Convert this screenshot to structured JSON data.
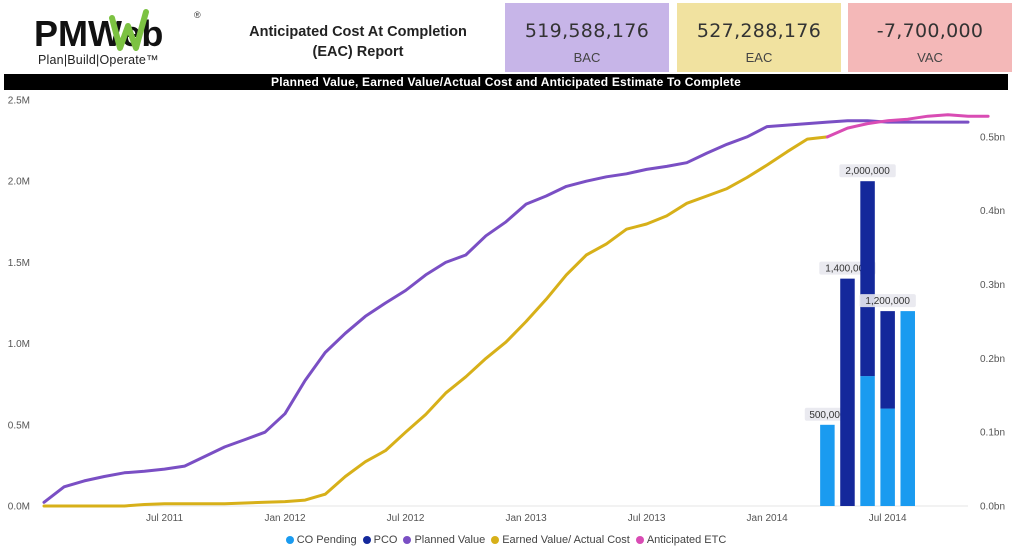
{
  "header": {
    "logo_text": "PMWeb",
    "logo_mark": "®",
    "tagline": "Plan|Build|Operate™",
    "report_title": "Anticipated Cost At Completion (EAC) Report"
  },
  "kpis": [
    {
      "value": "519,588,176",
      "label": "BAC",
      "color": "#c7b5e8"
    },
    {
      "value": "527,288,176",
      "label": "EAC",
      "color": "#f1e2a0"
    },
    {
      "value": "-7,700,000",
      "label": "VAC",
      "color": "#f4b8b8"
    }
  ],
  "banner": "Planned Value, Earned Value/Actual Cost and Anticipated Estimate To Complete",
  "chart_data": {
    "type": "line",
    "title": "Planned Value, Earned Value/Actual Cost and Anticipated Estimate To Complete",
    "x_start": "2011-01",
    "x_end": "2014-11",
    "x_ticks": [
      {
        "label": "Jul 2011",
        "index": 6
      },
      {
        "label": "Jan 2012",
        "index": 12
      },
      {
        "label": "Jul 2012",
        "index": 18
      },
      {
        "label": "Jan 2013",
        "index": 24
      },
      {
        "label": "Jul 2013",
        "index": 30
      },
      {
        "label": "Jan 2014",
        "index": 36
      },
      {
        "label": "Jul 2014",
        "index": 42
      }
    ],
    "y_left": {
      "min": 0,
      "max": 2500000,
      "ticks": [
        {
          "value": 0,
          "label": "0.0M"
        },
        {
          "value": 500000,
          "label": "0.5M"
        },
        {
          "value": 1000000,
          "label": "1.0M"
        },
        {
          "value": 1500000,
          "label": "1.5M"
        },
        {
          "value": 2000000,
          "label": "2.0M"
        },
        {
          "value": 2500000,
          "label": "2.5M"
        }
      ]
    },
    "y_right": {
      "min": 0,
      "max": 0.55,
      "ticks": [
        {
          "value": 0,
          "label": "0.0bn"
        },
        {
          "value": 0.1,
          "label": "0.1bn"
        },
        {
          "value": 0.2,
          "label": "0.2bn"
        },
        {
          "value": 0.3,
          "label": "0.3bn"
        },
        {
          "value": 0.4,
          "label": "0.4bn"
        },
        {
          "value": 0.5,
          "label": "0.5bn"
        }
      ]
    },
    "bar_series": [
      {
        "name": "CO Pending",
        "color": "#1a9bf0"
      },
      {
        "name": "PCO",
        "color": "#14289b"
      }
    ],
    "bars": [
      {
        "index": 39,
        "co_pending": 500000,
        "pco": 0,
        "label": "500,000"
      },
      {
        "index": 40,
        "co_pending": 0,
        "pco": 1400000,
        "label": "1,400,000"
      },
      {
        "index": 41,
        "co_pending": 800000,
        "pco": 1200000,
        "label": "2,000,000"
      },
      {
        "index": 42,
        "co_pending": 600000,
        "pco": 600000,
        "label": "1,200,000"
      },
      {
        "index": 43,
        "co_pending": 1200000,
        "pco": 0,
        "label": ""
      }
    ],
    "line_series": [
      {
        "name": "Planned Value",
        "color": "#7a4fc4",
        "start": 0,
        "values": [
          0.005,
          0.026,
          0.034,
          0.04,
          0.045,
          0.047,
          0.05,
          0.054,
          0.067,
          0.08,
          0.09,
          0.1,
          0.125,
          0.17,
          0.208,
          0.234,
          0.257,
          0.275,
          0.292,
          0.313,
          0.33,
          0.34,
          0.366,
          0.385,
          0.409,
          0.42,
          0.433,
          0.44,
          0.446,
          0.45,
          0.456,
          0.46,
          0.465,
          0.478,
          0.49,
          0.5,
          0.514,
          0.516,
          0.518,
          0.52,
          0.522,
          0.522,
          0.52,
          0.52,
          0.52,
          0.52,
          0.52
        ]
      },
      {
        "name": "Earned Value/ Actual Cost",
        "color": "#d7b019",
        "start": 0,
        "values": [
          0,
          0,
          0,
          0,
          0,
          0.002,
          0.003,
          0.003,
          0.003,
          0.003,
          0.004,
          0.005,
          0.006,
          0.008,
          0.016,
          0.04,
          0.06,
          0.075,
          0.1,
          0.124,
          0.153,
          0.175,
          0.2,
          0.222,
          0.25,
          0.28,
          0.313,
          0.34,
          0.355,
          0.375,
          0.382,
          0.393,
          0.41,
          0.42,
          0.43,
          0.445,
          0.462,
          0.48,
          0.497,
          0.5
        ]
      },
      {
        "name": "Anticipated ETC",
        "color": "#d94cb4",
        "start": 39,
        "values": [
          0.5,
          0.512,
          0.518,
          0.522,
          0.524,
          0.528,
          0.53,
          0.528,
          0.528
        ]
      }
    ],
    "legend_position": "bottom-center"
  }
}
